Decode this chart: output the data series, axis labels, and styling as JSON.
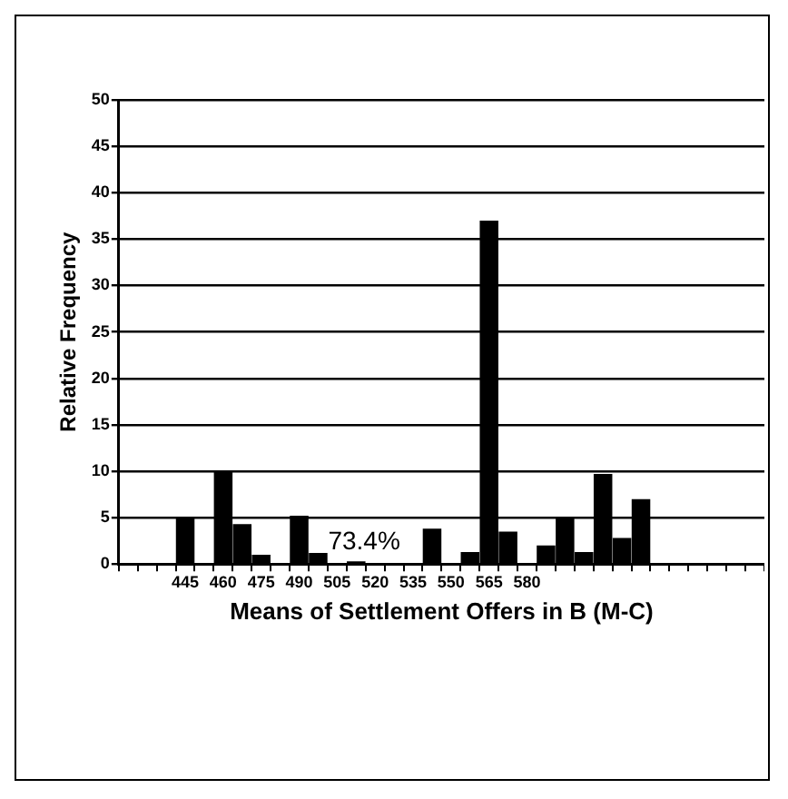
{
  "chart_data": {
    "type": "bar",
    "xlabel": "Means of Settlement Offers in B (M-C)",
    "ylabel": "Relative Frequency",
    "categories": [
      null,
      null,
      null,
      "445",
      null,
      "460",
      null,
      "475",
      null,
      "490",
      null,
      "505",
      null,
      "520",
      null,
      "535",
      null,
      "550",
      null,
      "565",
      null,
      "580",
      null,
      null,
      null,
      null,
      null,
      null,
      null,
      null,
      null,
      null,
      null,
      null
    ],
    "values": [
      0,
      0,
      0,
      5,
      0,
      10,
      4.3,
      1,
      0,
      5.2,
      1.2,
      0,
      0.3,
      0,
      0,
      0,
      3.8,
      0,
      1.3,
      37,
      3.5,
      0,
      2,
      5,
      1.3,
      9.7,
      2.8,
      7,
      0,
      0,
      0,
      0,
      0,
      0
    ],
    "color": "#000000",
    "ylim": [
      0,
      50
    ],
    "yticks": [
      0,
      5,
      10,
      15,
      20,
      25,
      30,
      35,
      40,
      45,
      50
    ],
    "grid": "y",
    "annotations": [
      "73.4%"
    ]
  }
}
